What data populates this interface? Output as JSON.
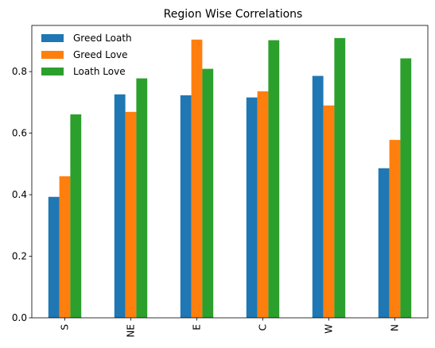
{
  "chart_data": {
    "type": "bar",
    "title": "Region Wise Correlations",
    "xlabel": "",
    "ylabel": "",
    "categories": [
      "S",
      "NE",
      "E",
      "C",
      "W",
      "N"
    ],
    "series": [
      {
        "name": "Greed Loath",
        "color": "#1f77b4",
        "values": [
          0.393,
          0.726,
          0.723,
          0.716,
          0.786,
          0.486
        ]
      },
      {
        "name": "Greed Love",
        "color": "#ff7f0e",
        "values": [
          0.46,
          0.669,
          0.904,
          0.736,
          0.69,
          0.578
        ]
      },
      {
        "name": "Loath Love",
        "color": "#2ca02c",
        "values": [
          0.661,
          0.778,
          0.809,
          0.902,
          0.909,
          0.843
        ]
      }
    ],
    "ylim": [
      0,
      0.95
    ],
    "yticks": [
      0.0,
      0.2,
      0.4,
      0.6,
      0.8
    ],
    "ytick_labels": [
      "0.0",
      "0.2",
      "0.4",
      "0.6",
      "0.8"
    ],
    "grid": false,
    "legend_position": "top-left"
  }
}
